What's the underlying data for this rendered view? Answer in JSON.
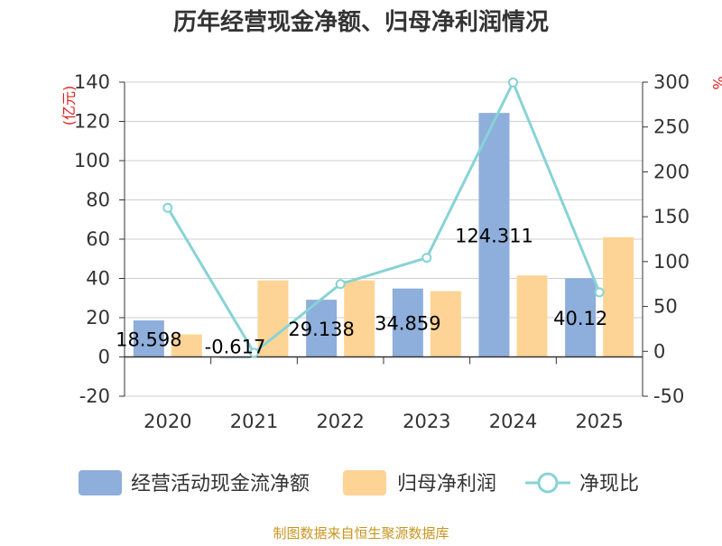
{
  "chart_data": {
    "type": "bar",
    "title": "历年经营现金净额、归母净利润情况",
    "categories": [
      "2020",
      "2021",
      "2022",
      "2023",
      "2024",
      "2025"
    ],
    "series": [
      {
        "name": "经营活动现金流净额",
        "type": "bar",
        "axis": "left",
        "color": "#8eaedb",
        "values": [
          18.598,
          -0.617,
          29.138,
          34.859,
          124.311,
          40.12
        ],
        "labels": [
          "18.598",
          "-0.617",
          "29.138",
          "34.859",
          "124.311",
          "40.12"
        ]
      },
      {
        "name": "归母净利润",
        "type": "bar",
        "axis": "left",
        "color": "#fdd495",
        "values": [
          11.5,
          39.0,
          39.0,
          33.5,
          41.5,
          61.0
        ]
      },
      {
        "name": "净现比",
        "type": "line",
        "axis": "right",
        "color": "#87d3d6",
        "values": [
          159.9,
          -1.6,
          75.0,
          104.3,
          299.6,
          65.8
        ]
      }
    ],
    "y_left": {
      "label": "(亿元)",
      "ylim": [
        -20,
        140
      ],
      "ticks": [
        "-20",
        "0",
        "20",
        "40",
        "60",
        "80",
        "100",
        "120",
        "140"
      ]
    },
    "y_right": {
      "label": "%",
      "ylim": [
        -50,
        300
      ],
      "ticks": [
        "-50",
        "0",
        "50",
        "100",
        "150",
        "200",
        "250",
        "300"
      ]
    },
    "grid": true,
    "legend_position": "bottom",
    "source": "制图数据来自恒生聚源数据库"
  }
}
